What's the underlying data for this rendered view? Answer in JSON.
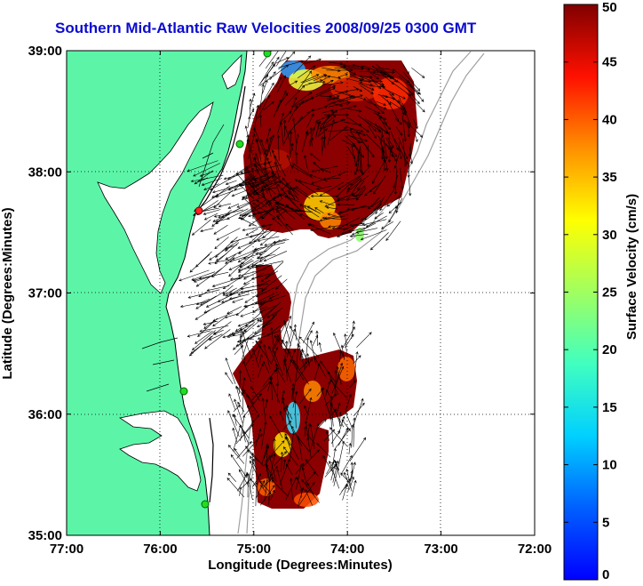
{
  "chart_data": {
    "type": "vector-field-map",
    "title": "Southern Mid-Atlantic Raw Velocities 2008/09/25 0300 GMT",
    "xlabel": "Longitude (Degrees:Minutes)",
    "ylabel": "Latitude (Degrees:Minutes)",
    "x_ticks": [
      "77:00",
      "76:00",
      "75:00",
      "74:00",
      "73:00",
      "72:00"
    ],
    "y_ticks": [
      "39:00",
      "38:00",
      "37:00",
      "36:00",
      "35:00"
    ],
    "xlim": [
      -77,
      -72
    ],
    "ylim": [
      35,
      39
    ],
    "grid": "dotted",
    "colorbar": {
      "label": "Surface Velocity (cm/s)",
      "range": [
        0,
        50
      ],
      "ticks": [
        "0",
        "5",
        "10",
        "15",
        "20",
        "25",
        "30",
        "35",
        "40",
        "45",
        "50"
      ],
      "colormap": "jet"
    },
    "land_color": "#5cf5a8",
    "coastline_color": "#000000",
    "bathymetry_color": "#a0a0a0",
    "site_marker_color": "#22dd22",
    "velocity_regions": [
      {
        "name": "northern",
        "lon": [
          -75.1,
          -73.4
        ],
        "lat": [
          37.4,
          38.9
        ],
        "dominant_speed": 50
      },
      {
        "name": "southern",
        "lon": [
          -75.25,
          -73.9
        ],
        "lat": [
          35.25,
          36.55
        ],
        "dominant_speed": 50
      }
    ]
  }
}
